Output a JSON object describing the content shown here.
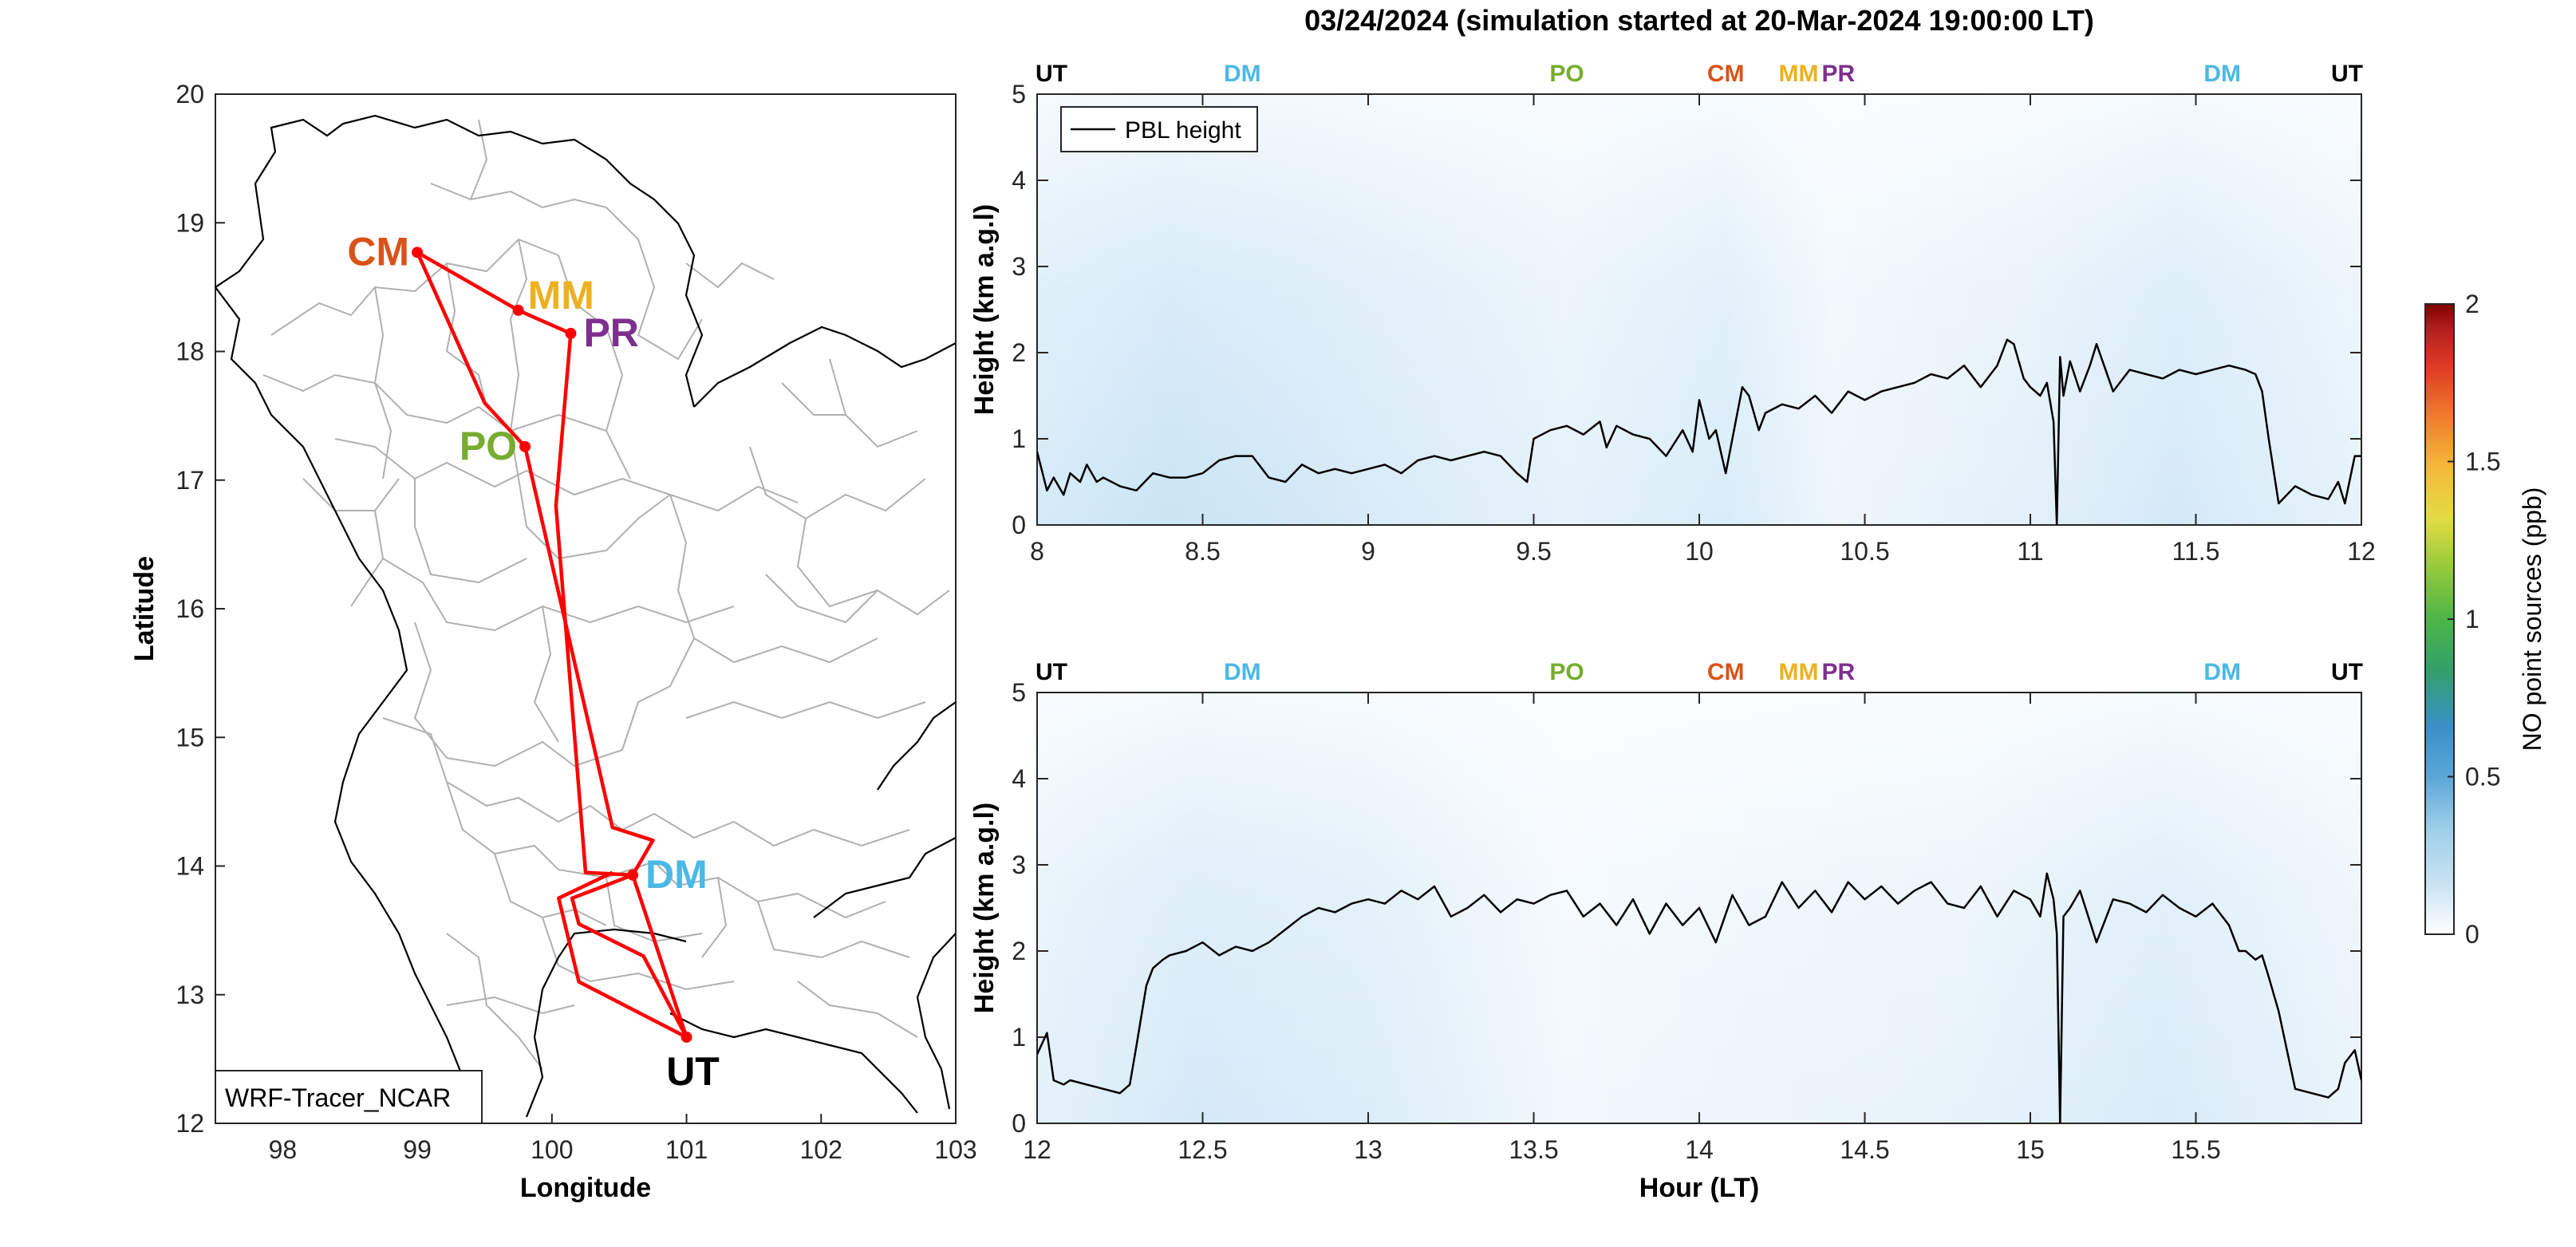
{
  "figure": {
    "title": "03/24/2024 (simulation started at 20-Mar-2024 19:00:00 LT)"
  },
  "colors": {
    "route": "#ff0000",
    "UT": "#000000",
    "DM": "#4cb8e6",
    "PO": "#77ac30",
    "CM": "#d95319",
    "MM": "#edb120",
    "PR": "#7e2f8e",
    "border": "#b0b0b0",
    "coast": "#000000",
    "pbl": "#000000"
  },
  "map": {
    "xlabel": "Longitude",
    "ylabel": "Latitude",
    "xlim": [
      97.5,
      103
    ],
    "ylim": [
      12,
      20
    ],
    "xticks": [
      98,
      99,
      100,
      101,
      102,
      103
    ],
    "yticks": [
      12,
      13,
      14,
      15,
      16,
      17,
      18,
      19,
      20
    ],
    "legend_label": "WRF-Tracer_NCAR",
    "sites": [
      {
        "code": "CM",
        "lon": 99.0,
        "lat": 18.77,
        "label_pos": "left"
      },
      {
        "code": "MM",
        "lon": 99.75,
        "lat": 18.32,
        "label_pos": "right-up"
      },
      {
        "code": "PR",
        "lon": 100.14,
        "lat": 18.14,
        "label_pos": "right"
      },
      {
        "code": "PO",
        "lon": 99.8,
        "lat": 17.26,
        "label_pos": "left"
      },
      {
        "code": "DM",
        "lon": 100.6,
        "lat": 13.93,
        "label_pos": "right"
      },
      {
        "code": "UT",
        "lon": 101.0,
        "lat": 12.67,
        "label_pos": "below"
      }
    ],
    "route": [
      [
        101.0,
        12.67
      ],
      [
        100.6,
        13.93
      ],
      [
        100.25,
        13.95
      ],
      [
        100.03,
        16.8
      ],
      [
        100.14,
        18.14
      ],
      [
        99.75,
        18.32
      ],
      [
        99.0,
        18.77
      ],
      [
        99.5,
        17.6
      ],
      [
        99.8,
        17.26
      ],
      [
        100.45,
        14.3
      ],
      [
        100.75,
        14.2
      ],
      [
        100.6,
        13.93
      ],
      [
        100.15,
        13.75
      ],
      [
        100.2,
        13.55
      ],
      [
        100.68,
        13.3
      ],
      [
        101.0,
        12.67
      ],
      [
        100.2,
        13.1
      ],
      [
        100.05,
        13.75
      ],
      [
        100.45,
        13.95
      ]
    ]
  },
  "chart_data": [
    {
      "type": "line",
      "panel": "top",
      "overlay": "heatmap",
      "xlim": [
        8,
        12
      ],
      "ylim": [
        0,
        5
      ],
      "xticks": [
        8,
        8.5,
        9,
        9.5,
        10,
        10.5,
        11,
        11.5,
        12
      ],
      "yticks": [
        0,
        1,
        2,
        3,
        4,
        5
      ],
      "xlabel": "",
      "ylabel": "Height (km a.g.l)",
      "legend": "PBL height",
      "site_ticks": [
        {
          "code": "UT",
          "x": 8.0
        },
        {
          "code": "DM",
          "x": 8.62
        },
        {
          "code": "PO",
          "x": 9.6
        },
        {
          "code": "CM",
          "x": 10.08
        },
        {
          "code": "MM",
          "x": 10.3
        },
        {
          "code": "PR",
          "x": 10.42
        },
        {
          "code": "DM",
          "x": 11.58
        },
        {
          "code": "UT",
          "x": 12.0
        }
      ],
      "series": [
        {
          "name": "PBL height",
          "x": [
            8.0,
            8.03,
            8.05,
            8.08,
            8.1,
            8.13,
            8.15,
            8.18,
            8.2,
            8.25,
            8.3,
            8.35,
            8.4,
            8.45,
            8.5,
            8.55,
            8.6,
            8.65,
            8.7,
            8.75,
            8.8,
            8.85,
            8.9,
            8.95,
            9.0,
            9.05,
            9.1,
            9.15,
            9.2,
            9.25,
            9.3,
            9.35,
            9.4,
            9.45,
            9.48,
            9.5,
            9.55,
            9.6,
            9.65,
            9.7,
            9.72,
            9.75,
            9.8,
            9.85,
            9.9,
            9.95,
            9.98,
            10.0,
            10.03,
            10.05,
            10.08,
            10.1,
            10.13,
            10.15,
            10.18,
            10.2,
            10.25,
            10.3,
            10.35,
            10.4,
            10.45,
            10.5,
            10.55,
            10.6,
            10.65,
            10.7,
            10.75,
            10.8,
            10.85,
            10.9,
            10.93,
            10.95,
            10.98,
            11.0,
            11.03,
            11.05,
            11.07,
            11.08,
            11.09,
            11.1,
            11.12,
            11.15,
            11.18,
            11.2,
            11.25,
            11.3,
            11.35,
            11.4,
            11.45,
            11.5,
            11.55,
            11.6,
            11.65,
            11.68,
            11.7,
            11.72,
            11.75,
            11.8,
            11.85,
            11.9,
            11.93,
            11.95,
            11.98,
            12.0
          ],
          "y": [
            0.85,
            0.4,
            0.55,
            0.35,
            0.6,
            0.5,
            0.7,
            0.5,
            0.55,
            0.45,
            0.4,
            0.6,
            0.55,
            0.55,
            0.6,
            0.75,
            0.8,
            0.8,
            0.55,
            0.5,
            0.7,
            0.6,
            0.65,
            0.6,
            0.65,
            0.7,
            0.6,
            0.75,
            0.8,
            0.75,
            0.8,
            0.85,
            0.8,
            0.6,
            0.5,
            1.0,
            1.1,
            1.15,
            1.05,
            1.2,
            0.9,
            1.15,
            1.05,
            1.0,
            0.8,
            1.1,
            0.85,
            1.45,
            1.0,
            1.1,
            0.6,
            1.0,
            1.6,
            1.5,
            1.1,
            1.3,
            1.4,
            1.35,
            1.5,
            1.3,
            1.55,
            1.45,
            1.55,
            1.6,
            1.65,
            1.75,
            1.7,
            1.85,
            1.6,
            1.85,
            2.15,
            2.1,
            1.7,
            1.6,
            1.5,
            1.65,
            1.2,
            0.0,
            1.95,
            1.5,
            1.9,
            1.55,
            1.85,
            2.1,
            1.55,
            1.8,
            1.75,
            1.7,
            1.8,
            1.75,
            1.8,
            1.85,
            1.8,
            1.75,
            1.55,
            1.0,
            0.25,
            0.45,
            0.35,
            0.3,
            0.5,
            0.25,
            0.8,
            0.8
          ]
        }
      ]
    },
    {
      "type": "line",
      "panel": "bottom",
      "overlay": "heatmap",
      "xlim": [
        12,
        16
      ],
      "ylim": [
        0,
        5
      ],
      "xticks": [
        12,
        12.5,
        13,
        13.5,
        14,
        14.5,
        15,
        15.5
      ],
      "yticks": [
        0,
        1,
        2,
        3,
        4,
        5
      ],
      "xlabel": "Hour (LT)",
      "ylabel": "Height (km a.g.l)",
      "site_ticks": [
        {
          "code": "UT",
          "x": 12.0
        },
        {
          "code": "DM",
          "x": 12.62
        },
        {
          "code": "PO",
          "x": 13.6
        },
        {
          "code": "CM",
          "x": 14.08
        },
        {
          "code": "MM",
          "x": 14.3
        },
        {
          "code": "PR",
          "x": 14.42
        },
        {
          "code": "DM",
          "x": 15.58
        },
        {
          "code": "UT",
          "x": 16.0
        }
      ],
      "series": [
        {
          "name": "PBL height",
          "x": [
            12.0,
            12.03,
            12.05,
            12.08,
            12.1,
            12.15,
            12.2,
            12.25,
            12.28,
            12.3,
            12.33,
            12.35,
            12.38,
            12.4,
            12.45,
            12.5,
            12.55,
            12.6,
            12.65,
            12.7,
            12.75,
            12.8,
            12.85,
            12.9,
            12.95,
            13.0,
            13.05,
            13.1,
            13.15,
            13.2,
            13.25,
            13.3,
            13.35,
            13.4,
            13.45,
            13.5,
            13.55,
            13.6,
            13.65,
            13.7,
            13.75,
            13.8,
            13.85,
            13.9,
            13.95,
            14.0,
            14.05,
            14.1,
            14.15,
            14.2,
            14.25,
            14.3,
            14.35,
            14.4,
            14.45,
            14.5,
            14.55,
            14.6,
            14.65,
            14.7,
            14.75,
            14.8,
            14.85,
            14.9,
            14.95,
            15.0,
            15.03,
            15.05,
            15.07,
            15.08,
            15.09,
            15.1,
            15.12,
            15.15,
            15.2,
            15.25,
            15.3,
            15.35,
            15.4,
            15.45,
            15.5,
            15.55,
            15.6,
            15.63,
            15.65,
            15.68,
            15.7,
            15.72,
            15.75,
            15.8,
            15.85,
            15.9,
            15.93,
            15.95,
            15.98,
            16.0
          ],
          "y": [
            0.8,
            1.05,
            0.5,
            0.45,
            0.5,
            0.45,
            0.4,
            0.35,
            0.45,
            0.9,
            1.6,
            1.8,
            1.9,
            1.95,
            2.0,
            2.1,
            1.95,
            2.05,
            2.0,
            2.1,
            2.25,
            2.4,
            2.5,
            2.45,
            2.55,
            2.6,
            2.55,
            2.7,
            2.6,
            2.75,
            2.4,
            2.5,
            2.65,
            2.45,
            2.6,
            2.55,
            2.65,
            2.7,
            2.4,
            2.55,
            2.3,
            2.6,
            2.2,
            2.55,
            2.3,
            2.5,
            2.1,
            2.65,
            2.3,
            2.4,
            2.8,
            2.5,
            2.7,
            2.45,
            2.8,
            2.6,
            2.75,
            2.55,
            2.7,
            2.8,
            2.55,
            2.5,
            2.75,
            2.4,
            2.7,
            2.6,
            2.4,
            2.9,
            2.6,
            2.2,
            0.0,
            2.4,
            2.5,
            2.7,
            2.1,
            2.6,
            2.55,
            2.45,
            2.65,
            2.5,
            2.4,
            2.55,
            2.3,
            2.0,
            2.0,
            1.9,
            1.95,
            1.7,
            1.3,
            0.4,
            0.35,
            0.3,
            0.4,
            0.7,
            0.85,
            0.5
          ]
        }
      ]
    }
  ],
  "colorbar": {
    "label": "NO point sources (ppb)",
    "ticks": [
      "0",
      "0.5",
      "1",
      "1.5",
      "2"
    ],
    "range": [
      0,
      2
    ],
    "colormap": [
      "#ffffff",
      "#c9e3f3",
      "#9ccde8",
      "#5ba6d8",
      "#3a8fc7",
      "#33a06a",
      "#4cb548",
      "#95c93c",
      "#e3dc44",
      "#f5b93a",
      "#ef7d2d",
      "#df3b25",
      "#b21f1f",
      "#800000"
    ]
  }
}
